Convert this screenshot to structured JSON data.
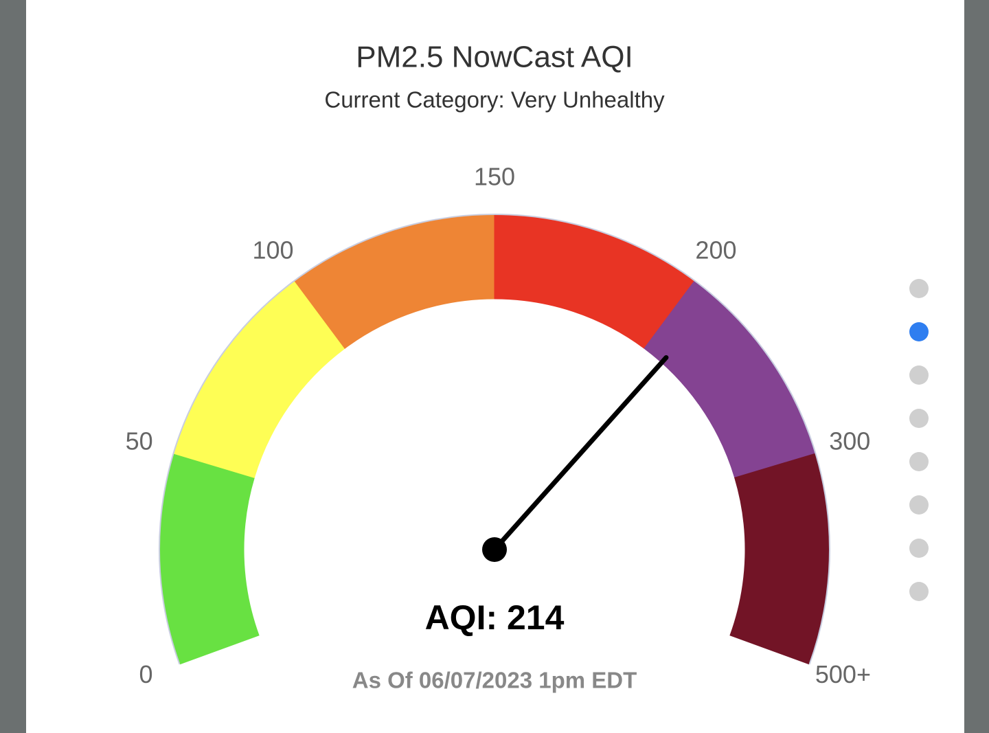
{
  "chart_data": {
    "type": "gauge",
    "title": "PM2.5 NowCast AQI",
    "subtitle": "Current Category: Very Unhealthy",
    "ticks": [
      0,
      50,
      100,
      150,
      200,
      300,
      {
        "value": 500,
        "label": "500+"
      }
    ],
    "band_colors": [
      "#68e142",
      "#fefe55",
      "#ee8535",
      "#e83424",
      "#844392",
      "#721426"
    ],
    "value": 214,
    "value_label": "AQI: 214",
    "footnote": "As Of 06/07/2023 1pm EDT",
    "needle_color": "#000000"
  }
}
